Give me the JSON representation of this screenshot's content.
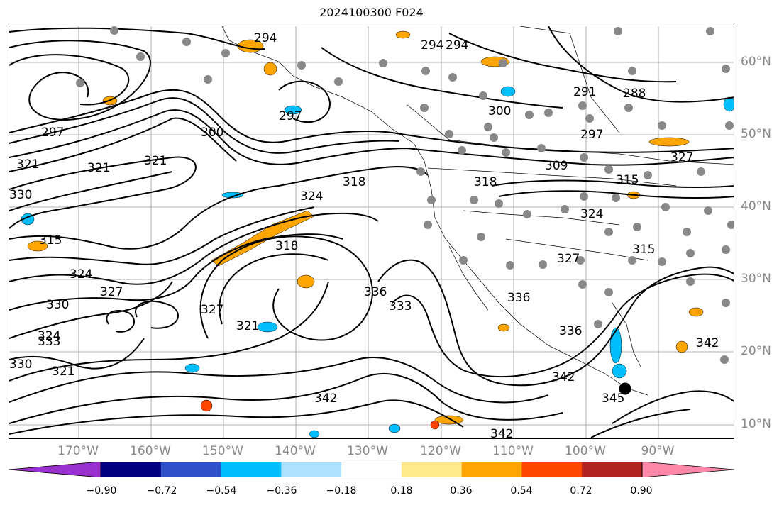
{
  "title": "2024100300 F024",
  "lat_labels": [
    "60°N",
    "50°N",
    "40°N",
    "30°N",
    "20°N",
    "10°N"
  ],
  "lon_labels": [
    "170°W",
    "160°W",
    "150°W",
    "140°W",
    "130°W",
    "120°W",
    "110°W",
    "100°W",
    "90°W"
  ],
  "contour_labels": [
    "294",
    "294",
    "294",
    "291",
    "288",
    "300",
    "297",
    "297",
    "300",
    "297",
    "321",
    "321",
    "321",
    "315",
    "330",
    "324",
    "318",
    "309",
    "315",
    "318",
    "324",
    "327",
    "315",
    "330",
    "324",
    "327",
    "324",
    "327",
    "321",
    "318",
    "336",
    "333",
    "333",
    "330",
    "321",
    "342",
    "336",
    "342",
    "342",
    "345",
    "342",
    "327",
    "336"
  ],
  "colorbar": {
    "colors": [
      "#9b30d0",
      "#00007f",
      "#3050c8",
      "#00bfff",
      "#aee0ff",
      "#ffffff",
      "#ffe98a",
      "#ffa500",
      "#ff4500",
      "#b22222",
      "#ff88aa"
    ],
    "ticks": [
      "−0.90",
      "−0.72",
      "−0.54",
      "−0.36",
      "−0.18",
      "0.18",
      "0.36",
      "0.54",
      "0.72",
      "0.90"
    ]
  }
}
